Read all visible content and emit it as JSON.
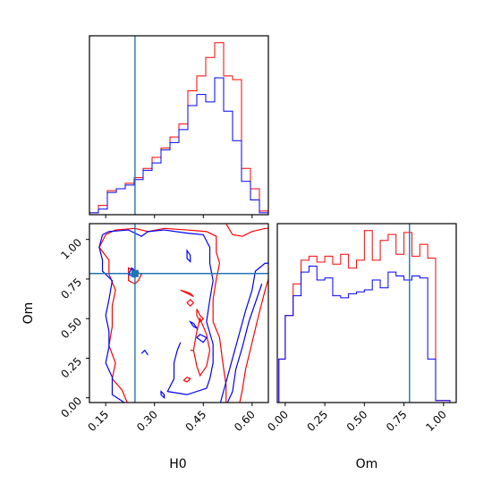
{
  "chart_data": {
    "type": "corner",
    "parameters": [
      "H0",
      "Om"
    ],
    "truths": {
      "H0": 0.24,
      "Om": 0.785
    },
    "truth_color": "#1f77b4",
    "series": [
      {
        "color": "#ff0000"
      },
      {
        "color": "#0000ff"
      }
    ],
    "panels": [
      {
        "kind": "histogram",
        "parameter": "H0",
        "xlim": [
          0.1,
          0.65
        ],
        "bin_edges": [
          0.1,
          0.1275,
          0.155,
          0.1825,
          0.21,
          0.2375,
          0.265,
          0.2925,
          0.32,
          0.3475,
          0.375,
          0.4025,
          0.43,
          0.4575,
          0.485,
          0.5125,
          0.54,
          0.5675,
          0.595,
          0.6225,
          0.65
        ],
        "counts": [
          [
            1,
            5,
            13,
            14,
            17,
            20,
            25,
            31,
            36,
            42,
            49,
            67,
            75,
            85,
            93,
            75,
            73,
            25,
            14,
            2
          ],
          [
            1,
            3,
            12,
            14,
            16,
            19,
            24,
            28,
            35,
            39,
            46,
            59,
            65,
            61,
            74,
            56,
            40,
            18,
            8,
            1
          ]
        ]
      },
      {
        "kind": "contour",
        "x": "H0",
        "y": "Om",
        "xlim": [
          0.1,
          0.65
        ],
        "ylim": [
          -0.03,
          1.1
        ],
        "x_ticks": [
          "0.15",
          "0.30",
          "0.45",
          "0.60"
        ],
        "y_ticks": [
          "0.00",
          "0.25",
          "0.50",
          "0.75",
          "1.00"
        ],
        "xlabel": "H0",
        "ylabel": "Om"
      },
      {
        "kind": "histogram",
        "parameter": "Om",
        "xlim": [
          -0.05,
          1.08
        ],
        "x_ticks": [
          "0.00",
          "0.25",
          "0.50",
          "0.75",
          "1.00"
        ],
        "xlabel": "Om",
        "bin_edges": [
          -0.04,
          0.0,
          0.05,
          0.1,
          0.15,
          0.2,
          0.25,
          0.3,
          0.35,
          0.4,
          0.45,
          0.5,
          0.55,
          0.6,
          0.65,
          0.7,
          0.75,
          0.8,
          0.85,
          0.9,
          0.95,
          1.0,
          1.04
        ],
        "counts": [
          [
            22,
            44,
            60,
            72,
            74,
            71,
            74,
            70,
            75,
            68,
            72,
            87,
            72,
            82,
            85,
            75,
            86,
            74,
            80,
            73,
            1,
            1
          ],
          [
            22,
            44,
            54,
            66,
            69,
            62,
            63,
            54,
            53,
            55,
            56,
            57,
            62,
            58,
            66,
            64,
            62,
            64,
            63,
            22,
            1,
            1
          ]
        ]
      }
    ]
  }
}
